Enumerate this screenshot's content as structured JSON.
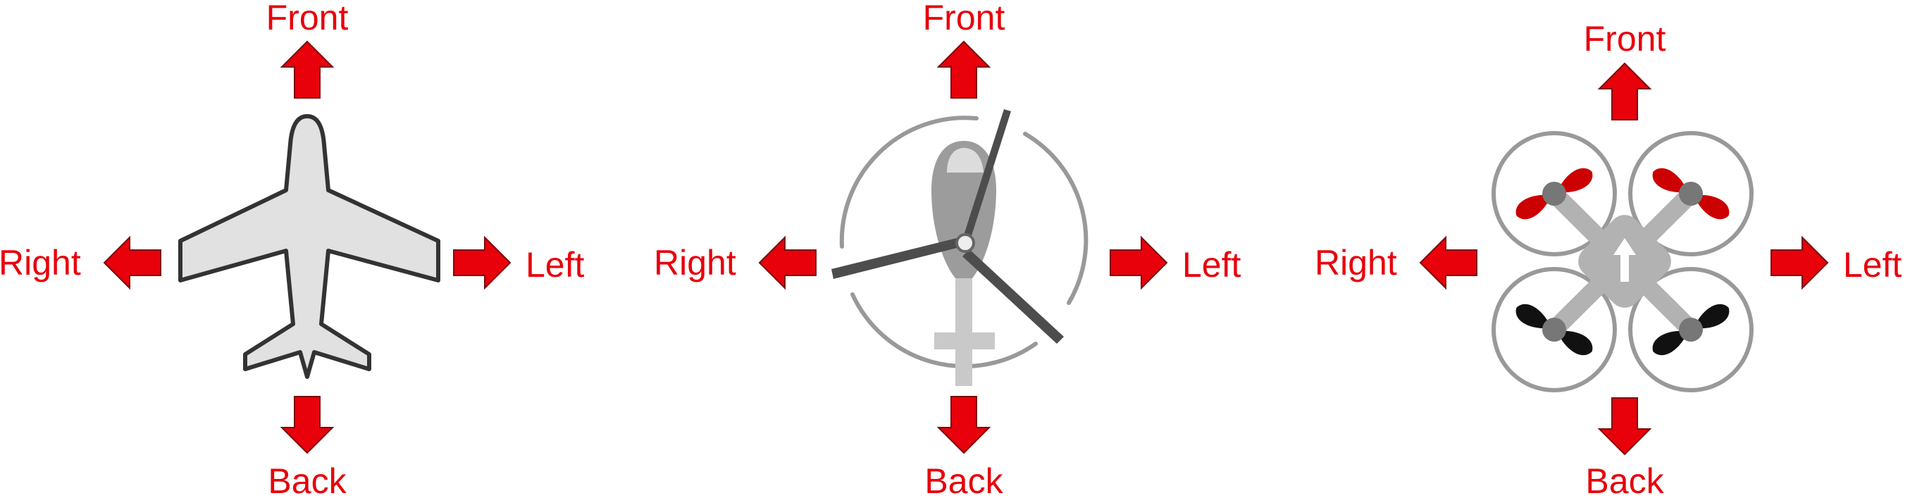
{
  "colors": {
    "arrow": "#e8000b",
    "arrow_stroke": "#7a0d0d",
    "label": "#e8000b",
    "airframe_fill": "#e0e1e0",
    "airframe_stroke": "#333333",
    "heli_body": "#9c9c9c",
    "heli_tail": "#c9c9c9",
    "rotor": "#4d4d4d",
    "ring": "#999999",
    "quad_frame": "#b2b2b2",
    "prop_front": "#cc0000",
    "prop_back": "#111111"
  },
  "panels": [
    {
      "vehicle": "fixed-wing",
      "icon": "airplane-icon",
      "labels": {
        "front": "Front",
        "back": "Back",
        "left": "Left",
        "right": "Right"
      }
    },
    {
      "vehicle": "helicopter",
      "icon": "helicopter-icon",
      "labels": {
        "front": "Front",
        "back": "Back",
        "left": "Left",
        "right": "Right"
      }
    },
    {
      "vehicle": "quadcopter",
      "icon": "quadcopter-icon",
      "labels": {
        "front": "Front",
        "back": "Back",
        "left": "Left",
        "right": "Right"
      }
    }
  ]
}
